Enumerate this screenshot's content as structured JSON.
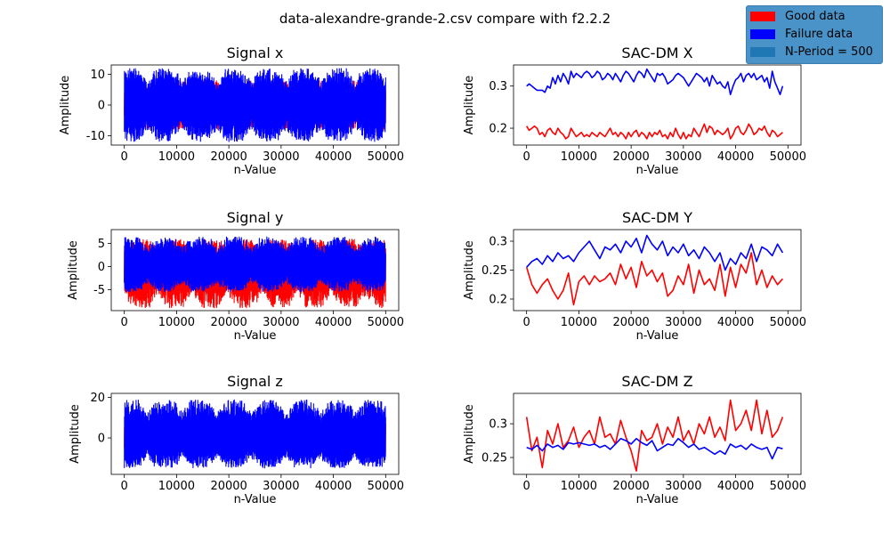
{
  "figure": {
    "title": "data-alexandre-grande-2.csv compare with f2.2.2"
  },
  "legend": {
    "placement": "upper-right",
    "entries": [
      {
        "label": "Good data",
        "color": "#ff0000"
      },
      {
        "label": "Failure data",
        "color": "#0000ff"
      },
      {
        "label": "N-Period = 500",
        "color": "#1f77b4"
      }
    ]
  },
  "chart_data": [
    {
      "id": "signal-x",
      "type": "line",
      "title": "Signal x",
      "xlabel": "n-Value",
      "ylabel": "Amplitude",
      "xlim": [
        -2500,
        52500
      ],
      "ylim": [
        -13,
        13
      ],
      "xticks": [
        0,
        10000,
        20000,
        30000,
        40000,
        50000
      ],
      "yticks": [
        -10,
        0,
        10
      ],
      "series": [
        {
          "color": "#ff0000",
          "x_range": [
            0,
            49999
          ],
          "envelope": {
            "min": -8,
            "max": 8
          }
        },
        {
          "color": "#0000ff",
          "x_range": [
            0,
            49999
          ],
          "envelope": {
            "min": -12,
            "max": 12
          }
        }
      ]
    },
    {
      "id": "signal-y",
      "type": "line",
      "title": "Signal y",
      "xlabel": "n-Value",
      "ylabel": "Amplitude",
      "xlim": [
        -2500,
        52500
      ],
      "ylim": [
        -9.5,
        8
      ],
      "xticks": [
        0,
        10000,
        20000,
        30000,
        40000,
        50000
      ],
      "yticks": [
        -5,
        0,
        5
      ],
      "series": [
        {
          "color": "#ff0000",
          "x_range": [
            0,
            49999
          ],
          "envelope": {
            "min": -9,
            "max": 6
          }
        },
        {
          "color": "#0000ff",
          "x_range": [
            0,
            49999
          ],
          "envelope": {
            "min": -5.5,
            "max": 6.5
          }
        }
      ]
    },
    {
      "id": "signal-z",
      "type": "line",
      "title": "Signal z",
      "xlabel": "n-Value",
      "ylabel": "Amplitude",
      "xlim": [
        -2500,
        52500
      ],
      "ylim": [
        -18,
        22
      ],
      "xticks": [
        0,
        10000,
        20000,
        30000,
        40000,
        50000
      ],
      "yticks": [
        0,
        20
      ],
      "series": [
        {
          "color": "#ff0000",
          "x_range": [
            0,
            49999
          ],
          "envelope": {
            "min": -8,
            "max": 10
          }
        },
        {
          "color": "#0000ff",
          "x_range": [
            0,
            49999
          ],
          "envelope": {
            "min": -15,
            "max": 19
          }
        }
      ]
    },
    {
      "id": "sacdm-x",
      "type": "line",
      "title": "SAC-DM X",
      "xlabel": "n-Value",
      "ylabel": "Amplitude",
      "xlim": [
        -2500,
        52500
      ],
      "ylim": [
        0.16,
        0.35
      ],
      "xticks": [
        0,
        10000,
        20000,
        30000,
        40000,
        50000
      ],
      "yticks": [
        0.2,
        0.3
      ],
      "x": [
        0,
        500,
        1000,
        1500,
        2000,
        2500,
        3000,
        3500,
        4000,
        4500,
        5000,
        5500,
        6000,
        6500,
        7000,
        7500,
        8000,
        8500,
        9000,
        9500,
        10000,
        10500,
        11000,
        11500,
        12000,
        12500,
        13000,
        13500,
        14000,
        14500,
        15000,
        15500,
        16000,
        16500,
        17000,
        17500,
        18000,
        18500,
        19000,
        19500,
        20000,
        20500,
        21000,
        21500,
        22000,
        22500,
        23000,
        23500,
        24000,
        24500,
        25000,
        25500,
        26000,
        26500,
        27000,
        27500,
        28000,
        28500,
        29000,
        29500,
        30000,
        30500,
        31000,
        31500,
        32000,
        32500,
        33000,
        33500,
        34000,
        34500,
        35000,
        35500,
        36000,
        36500,
        37000,
        37500,
        38000,
        38500,
        39000,
        39500,
        40000,
        40500,
        41000,
        41500,
        42000,
        42500,
        43000,
        43500,
        44000,
        44500,
        45000,
        45500,
        46000,
        46500,
        47000,
        47500,
        48000,
        48500,
        49000
      ],
      "series": [
        {
          "color": "#ff0000",
          "values": [
            0.205,
            0.195,
            0.2,
            0.205,
            0.2,
            0.185,
            0.19,
            0.18,
            0.195,
            0.2,
            0.19,
            0.185,
            0.2,
            0.19,
            0.185,
            0.175,
            0.18,
            0.2,
            0.19,
            0.18,
            0.185,
            0.19,
            0.18,
            0.185,
            0.18,
            0.19,
            0.185,
            0.18,
            0.19,
            0.185,
            0.18,
            0.19,
            0.2,
            0.185,
            0.19,
            0.18,
            0.19,
            0.185,
            0.175,
            0.19,
            0.18,
            0.19,
            0.195,
            0.18,
            0.19,
            0.185,
            0.175,
            0.19,
            0.18,
            0.19,
            0.185,
            0.195,
            0.18,
            0.185,
            0.175,
            0.19,
            0.18,
            0.2,
            0.185,
            0.175,
            0.19,
            0.175,
            0.185,
            0.18,
            0.2,
            0.19,
            0.18,
            0.195,
            0.21,
            0.19,
            0.205,
            0.2,
            0.185,
            0.195,
            0.19,
            0.185,
            0.19,
            0.2,
            0.175,
            0.185,
            0.2,
            0.205,
            0.19,
            0.185,
            0.195,
            0.21,
            0.2,
            0.185,
            0.19,
            0.2,
            0.195,
            0.205,
            0.19,
            0.18,
            0.195,
            0.19,
            0.18,
            0.185,
            0.19
          ]
        },
        {
          "color": "#0000ff",
          "values": [
            0.3,
            0.305,
            0.3,
            0.295,
            0.29,
            0.29,
            0.29,
            0.285,
            0.3,
            0.295,
            0.32,
            0.305,
            0.325,
            0.31,
            0.33,
            0.32,
            0.305,
            0.335,
            0.32,
            0.33,
            0.325,
            0.32,
            0.33,
            0.335,
            0.33,
            0.32,
            0.325,
            0.335,
            0.33,
            0.315,
            0.32,
            0.33,
            0.325,
            0.315,
            0.33,
            0.32,
            0.31,
            0.325,
            0.335,
            0.33,
            0.32,
            0.31,
            0.325,
            0.335,
            0.33,
            0.32,
            0.34,
            0.33,
            0.32,
            0.31,
            0.33,
            0.325,
            0.33,
            0.32,
            0.305,
            0.31,
            0.315,
            0.325,
            0.33,
            0.325,
            0.32,
            0.31,
            0.3,
            0.31,
            0.32,
            0.33,
            0.325,
            0.32,
            0.31,
            0.32,
            0.3,
            0.325,
            0.315,
            0.305,
            0.31,
            0.3,
            0.295,
            0.31,
            0.28,
            0.3,
            0.315,
            0.32,
            0.33,
            0.31,
            0.325,
            0.33,
            0.32,
            0.33,
            0.315,
            0.32,
            0.325,
            0.31,
            0.32,
            0.295,
            0.335,
            0.31,
            0.295,
            0.28,
            0.3
          ]
        }
      ]
    },
    {
      "id": "sacdm-y",
      "type": "line",
      "title": "SAC-DM Y",
      "xlabel": "n-Value",
      "ylabel": "Amplitude",
      "xlim": [
        -2500,
        52500
      ],
      "ylim": [
        0.18,
        0.32
      ],
      "xticks": [
        0,
        10000,
        20000,
        30000,
        40000,
        50000
      ],
      "yticks": [
        0.2,
        0.25,
        0.3
      ],
      "x": [
        0,
        1000,
        2000,
        3000,
        4000,
        5000,
        6000,
        7000,
        8000,
        9000,
        10000,
        11000,
        12000,
        13000,
        14000,
        15000,
        16000,
        17000,
        18000,
        19000,
        20000,
        21000,
        22000,
        23000,
        24000,
        25000,
        26000,
        27000,
        28000,
        29000,
        30000,
        31000,
        32000,
        33000,
        34000,
        35000,
        36000,
        37000,
        38000,
        39000,
        40000,
        41000,
        42000,
        43000,
        44000,
        45000,
        46000,
        47000,
        48000,
        49000
      ],
      "series": [
        {
          "color": "#ff0000",
          "values": [
            0.255,
            0.225,
            0.21,
            0.225,
            0.235,
            0.215,
            0.2,
            0.215,
            0.245,
            0.19,
            0.23,
            0.24,
            0.225,
            0.24,
            0.23,
            0.235,
            0.245,
            0.225,
            0.26,
            0.235,
            0.255,
            0.22,
            0.265,
            0.24,
            0.25,
            0.23,
            0.245,
            0.205,
            0.215,
            0.24,
            0.225,
            0.26,
            0.21,
            0.25,
            0.225,
            0.235,
            0.215,
            0.26,
            0.205,
            0.255,
            0.22,
            0.26,
            0.245,
            0.28,
            0.225,
            0.25,
            0.22,
            0.24,
            0.225,
            0.235
          ]
        },
        {
          "color": "#0000ff",
          "values": [
            0.255,
            0.265,
            0.27,
            0.26,
            0.275,
            0.265,
            0.28,
            0.27,
            0.275,
            0.265,
            0.28,
            0.29,
            0.3,
            0.285,
            0.27,
            0.29,
            0.285,
            0.295,
            0.28,
            0.3,
            0.29,
            0.305,
            0.28,
            0.31,
            0.295,
            0.285,
            0.3,
            0.275,
            0.29,
            0.28,
            0.295,
            0.275,
            0.285,
            0.27,
            0.29,
            0.28,
            0.265,
            0.28,
            0.25,
            0.27,
            0.26,
            0.28,
            0.27,
            0.295,
            0.265,
            0.29,
            0.285,
            0.275,
            0.295,
            0.28
          ]
        }
      ]
    },
    {
      "id": "sacdm-z",
      "type": "line",
      "title": "SAC-DM Z",
      "xlabel": "n-Value",
      "ylabel": "Amplitude",
      "xlim": [
        -2500,
        52500
      ],
      "ylim": [
        0.225,
        0.345
      ],
      "xticks": [
        0,
        10000,
        20000,
        30000,
        40000,
        50000
      ],
      "yticks": [
        0.25,
        0.3
      ],
      "x": [
        0,
        1000,
        2000,
        3000,
        4000,
        5000,
        6000,
        7000,
        8000,
        9000,
        10000,
        11000,
        12000,
        13000,
        14000,
        15000,
        16000,
        17000,
        18000,
        19000,
        20000,
        21000,
        22000,
        23000,
        24000,
        25000,
        26000,
        27000,
        28000,
        29000,
        30000,
        31000,
        32000,
        33000,
        34000,
        35000,
        36000,
        37000,
        38000,
        39000,
        40000,
        41000,
        42000,
        43000,
        44000,
        45000,
        46000,
        47000,
        48000,
        49000
      ],
      "series": [
        {
          "color": "#ff0000",
          "values": [
            0.31,
            0.26,
            0.28,
            0.235,
            0.29,
            0.27,
            0.3,
            0.265,
            0.275,
            0.295,
            0.265,
            0.28,
            0.29,
            0.27,
            0.31,
            0.28,
            0.285,
            0.27,
            0.305,
            0.28,
            0.26,
            0.23,
            0.29,
            0.275,
            0.28,
            0.3,
            0.27,
            0.295,
            0.28,
            0.31,
            0.275,
            0.29,
            0.27,
            0.3,
            0.285,
            0.31,
            0.28,
            0.295,
            0.275,
            0.335,
            0.29,
            0.3,
            0.32,
            0.29,
            0.335,
            0.285,
            0.32,
            0.28,
            0.29,
            0.31
          ]
        },
        {
          "color": "#0000ff",
          "values": [
            0.265,
            0.262,
            0.268,
            0.26,
            0.27,
            0.265,
            0.268,
            0.262,
            0.272,
            0.27,
            0.272,
            0.27,
            0.268,
            0.27,
            0.265,
            0.268,
            0.262,
            0.27,
            0.278,
            0.275,
            0.27,
            0.278,
            0.272,
            0.268,
            0.275,
            0.26,
            0.265,
            0.27,
            0.268,
            0.278,
            0.272,
            0.265,
            0.27,
            0.262,
            0.265,
            0.26,
            0.255,
            0.26,
            0.255,
            0.27,
            0.265,
            0.268,
            0.262,
            0.27,
            0.265,
            0.262,
            0.265,
            0.248,
            0.265,
            0.263
          ]
        }
      ]
    }
  ]
}
